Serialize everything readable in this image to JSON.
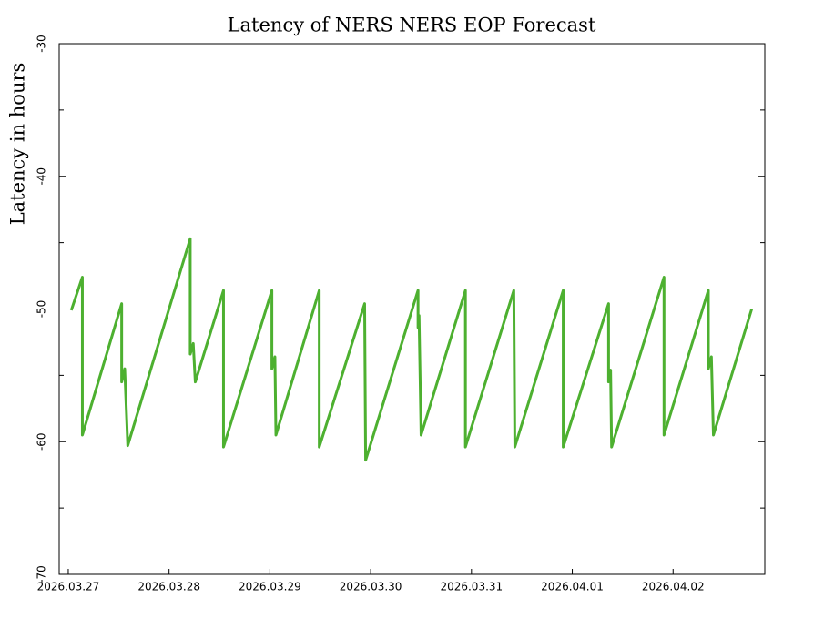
{
  "chart_data": {
    "type": "line",
    "title": "Latency of NERS NERS EOP Forecast",
    "y_label": "Latency in hours",
    "xlim": [
      -0.09,
      6.91
    ],
    "xticks": [
      {
        "value": 0,
        "label": "2026.03.27"
      },
      {
        "value": 1,
        "label": "2026.03.28"
      },
      {
        "value": 2,
        "label": "2026.03.29"
      },
      {
        "value": 3,
        "label": "2026.03.30"
      },
      {
        "value": 4,
        "label": "2026.03.31"
      },
      {
        "value": 5,
        "label": "2026.04.01"
      },
      {
        "value": 6,
        "label": "2026.04.02"
      }
    ],
    "ylim": [
      -70,
      -30
    ],
    "yticks": [
      -70,
      -60,
      -50,
      -40,
      -30
    ],
    "yminor_ticks": [
      -65,
      -55,
      -45,
      -35
    ],
    "series": [
      {
        "color": "#4db030",
        "x": [
          0.03,
          0.14,
          0.14,
          0.53,
          0.53,
          0.56,
          0.59,
          1.21,
          1.21,
          1.24,
          1.26,
          1.54,
          1.54,
          2.02,
          2.02,
          2.05,
          2.06,
          2.49,
          2.49,
          2.94,
          2.95,
          3.47,
          3.47,
          3.48,
          3.5,
          3.94,
          3.94,
          4.42,
          4.43,
          4.91,
          4.91,
          5.36,
          5.36,
          5.38,
          5.39,
          5.91,
          5.91,
          6.35,
          6.35,
          6.38,
          6.4,
          6.78
        ],
        "values": [
          -50.1,
          -47.6,
          -59.5,
          -49.6,
          -55.5,
          -54.5,
          -60.3,
          -44.7,
          -53.4,
          -52.6,
          -55.5,
          -48.6,
          -60.4,
          -48.6,
          -54.5,
          -53.6,
          -59.5,
          -48.6,
          -60.4,
          -49.6,
          -61.4,
          -48.6,
          -51.4,
          -50.5,
          -59.5,
          -48.6,
          -60.4,
          -48.6,
          -60.4,
          -48.6,
          -60.4,
          -49.6,
          -55.5,
          -54.6,
          -60.4,
          -47.6,
          -59.5,
          -48.6,
          -54.5,
          -53.6,
          -59.5,
          -50.0
        ]
      }
    ]
  }
}
